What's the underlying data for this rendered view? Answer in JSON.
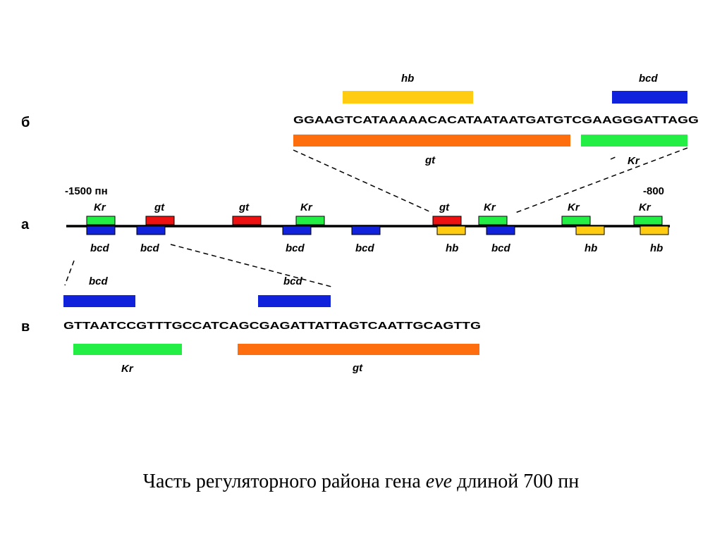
{
  "colors": {
    "Kr": "#22ee44",
    "bcd": "#1122dd",
    "gt": "#ee1111",
    "gt_long": "#ff6e0e",
    "hb": "#ffcc11",
    "line": "#000000"
  },
  "panel_a": {
    "letter": "а",
    "left_coord": "-1500 пн",
    "right_coord": "-800",
    "sites_above": [
      {
        "factor": "Kr",
        "label": "Kr"
      },
      {
        "factor": "gt",
        "label": "gt"
      },
      {
        "factor": "gt",
        "label": "gt"
      },
      {
        "factor": "Kr",
        "label": "Kr"
      },
      {
        "factor": "gt",
        "label": "gt"
      },
      {
        "factor": "Kr",
        "label": "Kr"
      },
      {
        "factor": "Kr",
        "label": "Kr"
      },
      {
        "factor": "Kr",
        "label": "Kr"
      }
    ],
    "sites_below": [
      {
        "factor": "bcd",
        "label": "bcd"
      },
      {
        "factor": "bcd",
        "label": "bcd"
      },
      {
        "factor": "bcd",
        "label": "bcd"
      },
      {
        "factor": "bcd",
        "label": "bcd"
      },
      {
        "factor": "hb",
        "label": "hb"
      },
      {
        "factor": "bcd",
        "label": "bcd"
      },
      {
        "factor": "hb",
        "label": "hb"
      },
      {
        "factor": "hb",
        "label": "hb"
      }
    ]
  },
  "panel_b": {
    "letter": "б",
    "sequence": "GGAAGTCATAAAAACACATAATAATGATGTCGAAGGGATTAGG",
    "bars_above": [
      {
        "factor": "hb",
        "label": "hb"
      },
      {
        "factor": "bcd",
        "label": "bcd"
      }
    ],
    "bars_below": [
      {
        "factor": "gt",
        "label": "gt"
      },
      {
        "factor": "Kr",
        "label": "Kr"
      }
    ]
  },
  "panel_c": {
    "letter": "в",
    "sequence": "GTTAATCCGTTTGCCATCAGCGAGATTATTAGTCAATTGCAGTTG",
    "bars_above": [
      {
        "factor": "bcd",
        "label": "bcd"
      },
      {
        "factor": "bcd",
        "label": "bcd"
      }
    ],
    "bars_below": [
      {
        "factor": "Kr",
        "label": "Kr"
      },
      {
        "factor": "gt",
        "label": "gt"
      }
    ]
  },
  "caption": {
    "before": "Часть регуляторного района гена ",
    "gene": "eve",
    "after": " длиной 700 пн"
  }
}
